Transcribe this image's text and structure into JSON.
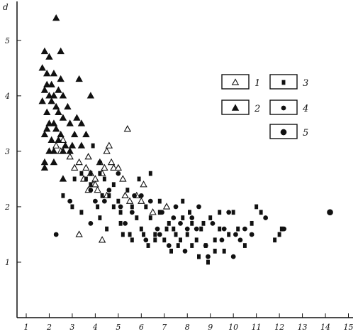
{
  "chart_data": {
    "type": "scatter",
    "title": "",
    "xlabel": "",
    "ylabel": "d",
    "xlim": [
      0.6,
      15.2
    ],
    "ylim": [
      0.0,
      5.6
    ],
    "grid": false,
    "legend_placement": "right",
    "x_ticks": [
      1,
      2,
      3,
      4,
      5,
      6,
      7,
      8,
      9,
      10,
      11,
      12,
      13,
      14,
      15
    ],
    "y_ticks": [
      1,
      2,
      3,
      4,
      5
    ],
    "series": [
      {
        "name": "1",
        "marker": "triangle-open",
        "points": [
          [
            2.3,
            3.1
          ],
          [
            2.5,
            3.0
          ],
          [
            2.6,
            3.2
          ],
          [
            2.9,
            2.9
          ],
          [
            3.1,
            2.7
          ],
          [
            3.3,
            2.8
          ],
          [
            3.5,
            2.5
          ],
          [
            3.6,
            2.7
          ],
          [
            3.7,
            2.9
          ],
          [
            3.8,
            2.6
          ],
          [
            3.9,
            2.4
          ],
          [
            4.0,
            2.5
          ],
          [
            4.1,
            2.3
          ],
          [
            4.2,
            2.8
          ],
          [
            4.3,
            2.6
          ],
          [
            4.4,
            2.7
          ],
          [
            4.5,
            3.0
          ],
          [
            4.6,
            3.1
          ],
          [
            4.7,
            2.8
          ],
          [
            4.8,
            2.7
          ],
          [
            5.0,
            2.7
          ],
          [
            5.2,
            2.5
          ],
          [
            5.3,
            2.2
          ],
          [
            5.4,
            3.4
          ],
          [
            5.5,
            2.1
          ],
          [
            5.8,
            2.2
          ],
          [
            6.0,
            2.1
          ],
          [
            6.1,
            2.4
          ],
          [
            6.5,
            1.9
          ],
          [
            7.1,
            2.0
          ],
          [
            3.3,
            1.5
          ],
          [
            4.3,
            1.4
          ],
          [
            3.7,
            2.3
          ],
          [
            4.0,
            2.4
          ],
          [
            4.5,
            2.2
          ]
        ]
      },
      {
        "name": "2",
        "marker": "triangle-filled",
        "points": [
          [
            2.3,
            5.4
          ],
          [
            2.5,
            4.8
          ],
          [
            1.8,
            4.8
          ],
          [
            2.0,
            4.7
          ],
          [
            1.7,
            4.5
          ],
          [
            1.9,
            4.4
          ],
          [
            2.2,
            4.4
          ],
          [
            2.5,
            4.3
          ],
          [
            3.3,
            4.3
          ],
          [
            1.9,
            4.2
          ],
          [
            2.1,
            4.2
          ],
          [
            2.4,
            4.1
          ],
          [
            1.8,
            4.1
          ],
          [
            2.0,
            4.0
          ],
          [
            2.2,
            4.0
          ],
          [
            2.6,
            4.0
          ],
          [
            3.8,
            4.0
          ],
          [
            1.7,
            3.9
          ],
          [
            2.1,
            3.9
          ],
          [
            2.3,
            3.8
          ],
          [
            2.8,
            3.8
          ],
          [
            1.9,
            3.7
          ],
          [
            2.4,
            3.7
          ],
          [
            2.6,
            3.6
          ],
          [
            3.2,
            3.6
          ],
          [
            2.0,
            3.5
          ],
          [
            2.2,
            3.5
          ],
          [
            2.9,
            3.5
          ],
          [
            3.4,
            3.5
          ],
          [
            1.9,
            3.4
          ],
          [
            2.3,
            3.4
          ],
          [
            2.5,
            3.3
          ],
          [
            3.1,
            3.3
          ],
          [
            3.6,
            3.3
          ],
          [
            1.8,
            3.3
          ],
          [
            2.1,
            3.2
          ],
          [
            2.4,
            3.2
          ],
          [
            2.7,
            3.1
          ],
          [
            3.0,
            3.1
          ],
          [
            3.4,
            3.1
          ],
          [
            2.0,
            3.0
          ],
          [
            2.2,
            3.0
          ],
          [
            2.6,
            3.0
          ],
          [
            2.9,
            3.0
          ],
          [
            1.8,
            2.8
          ],
          [
            2.2,
            2.8
          ],
          [
            1.8,
            2.7
          ],
          [
            2.6,
            2.5
          ]
        ]
      },
      {
        "name": "3",
        "marker": "square-filled",
        "points": [
          [
            3.1,
            2.5
          ],
          [
            3.4,
            2.6
          ],
          [
            3.6,
            2.5
          ],
          [
            3.8,
            2.4
          ],
          [
            3.9,
            3.1
          ],
          [
            4.1,
            2.0
          ],
          [
            4.2,
            1.8
          ],
          [
            4.4,
            2.5
          ],
          [
            4.6,
            2.2
          ],
          [
            4.8,
            2.4
          ],
          [
            5.0,
            2.1
          ],
          [
            5.1,
            1.9
          ],
          [
            5.4,
            2.3
          ],
          [
            5.6,
            2.0
          ],
          [
            5.8,
            1.8
          ],
          [
            6.0,
            1.6
          ],
          [
            6.2,
            2.0
          ],
          [
            6.4,
            1.8
          ],
          [
            6.6,
            1.5
          ],
          [
            6.8,
            1.9
          ],
          [
            7.0,
            1.4
          ],
          [
            7.2,
            1.7
          ],
          [
            7.4,
            1.6
          ],
          [
            7.6,
            1.3
          ],
          [
            7.8,
            1.8
          ],
          [
            8.0,
            1.5
          ],
          [
            8.2,
            1.7
          ],
          [
            8.4,
            1.4
          ],
          [
            8.6,
            1.6
          ],
          [
            8.8,
            1.3
          ],
          [
            9.0,
            1.8
          ],
          [
            9.2,
            1.4
          ],
          [
            9.4,
            1.6
          ],
          [
            9.6,
            1.2
          ],
          [
            9.8,
            1.5
          ],
          [
            10.2,
            1.6
          ],
          [
            10.8,
            1.7
          ],
          [
            11.0,
            2.0
          ],
          [
            11.8,
            1.4
          ],
          [
            12.0,
            1.5
          ],
          [
            5.2,
            1.5
          ],
          [
            5.6,
            1.4
          ],
          [
            6.3,
            1.3
          ],
          [
            7.3,
            1.2
          ],
          [
            8.5,
            1.1
          ],
          [
            8.9,
            1.0
          ],
          [
            3.4,
            1.9
          ],
          [
            4.5,
            1.6
          ],
          [
            5.1,
            1.7
          ],
          [
            6.1,
            1.5
          ],
          [
            7.5,
            1.5
          ],
          [
            8.2,
            1.3
          ],
          [
            2.6,
            2.2
          ],
          [
            3.0,
            2.0
          ],
          [
            4.8,
            2.0
          ],
          [
            5.9,
            2.5
          ],
          [
            6.4,
            2.6
          ],
          [
            6.8,
            2.1
          ],
          [
            7.8,
            2.1
          ],
          [
            9.4,
            1.9
          ],
          [
            10.0,
            1.9
          ],
          [
            11.2,
            1.9
          ],
          [
            3.8,
            2.6
          ],
          [
            4.2,
            2.6
          ],
          [
            4.3,
            2.2
          ],
          [
            5.5,
            1.5
          ],
          [
            6.6,
            1.4
          ],
          [
            7.1,
            1.6
          ],
          [
            7.7,
            1.4
          ],
          [
            8.1,
            1.9
          ],
          [
            8.7,
            1.7
          ],
          [
            9.2,
            1.2
          ],
          [
            10.5,
            1.3
          ],
          [
            12.1,
            1.6
          ]
        ]
      },
      {
        "name": "4",
        "marker": "circle-filled",
        "points": [
          [
            2.3,
            1.5
          ],
          [
            2.9,
            2.1
          ],
          [
            3.8,
            2.3
          ],
          [
            4.0,
            2.1
          ],
          [
            4.2,
            2.8
          ],
          [
            4.6,
            2.3
          ],
          [
            5.0,
            2.6
          ],
          [
            5.3,
            1.7
          ],
          [
            5.6,
            1.9
          ],
          [
            6.0,
            2.2
          ],
          [
            6.4,
            2.1
          ],
          [
            6.7,
            1.6
          ],
          [
            6.9,
            1.9
          ],
          [
            7.2,
            1.3
          ],
          [
            7.5,
            2.0
          ],
          [
            7.7,
            1.7
          ],
          [
            7.9,
            1.2
          ],
          [
            8.2,
            1.8
          ],
          [
            8.4,
            1.6
          ],
          [
            8.8,
            1.3
          ],
          [
            9.1,
            1.7
          ],
          [
            9.5,
            1.4
          ],
          [
            9.8,
            1.9
          ],
          [
            10.1,
            1.5
          ],
          [
            10.5,
            1.6
          ],
          [
            10.8,
            1.5
          ],
          [
            11.4,
            1.8
          ],
          [
            12.2,
            1.6
          ],
          [
            3.8,
            1.7
          ],
          [
            4.4,
            2.1
          ],
          [
            5.1,
            2.0
          ],
          [
            5.7,
            2.2
          ],
          [
            6.2,
            1.4
          ],
          [
            6.8,
            1.5
          ],
          [
            7.4,
            1.8
          ],
          [
            8.0,
            1.6
          ],
          [
            8.5,
            2.0
          ],
          [
            8.9,
            1.1
          ],
          [
            10.0,
            1.1
          ],
          [
            10.3,
            1.4
          ],
          [
            9.6,
            1.6
          ]
        ]
      },
      {
        "name": "5",
        "marker": "circle-dotted",
        "points": [
          [
            14.2,
            1.9
          ]
        ]
      }
    ]
  },
  "legend": {
    "entries": [
      {
        "label": "1",
        "marker": "triangle-open"
      },
      {
        "label": "2",
        "marker": "triangle-filled"
      },
      {
        "label": "3",
        "marker": "square-filled"
      },
      {
        "label": "4",
        "marker": "circle-filled"
      },
      {
        "label": "5",
        "marker": "circle-dotted"
      }
    ]
  },
  "colors": {
    "ink": "#111111",
    "background": "#ffffff"
  }
}
